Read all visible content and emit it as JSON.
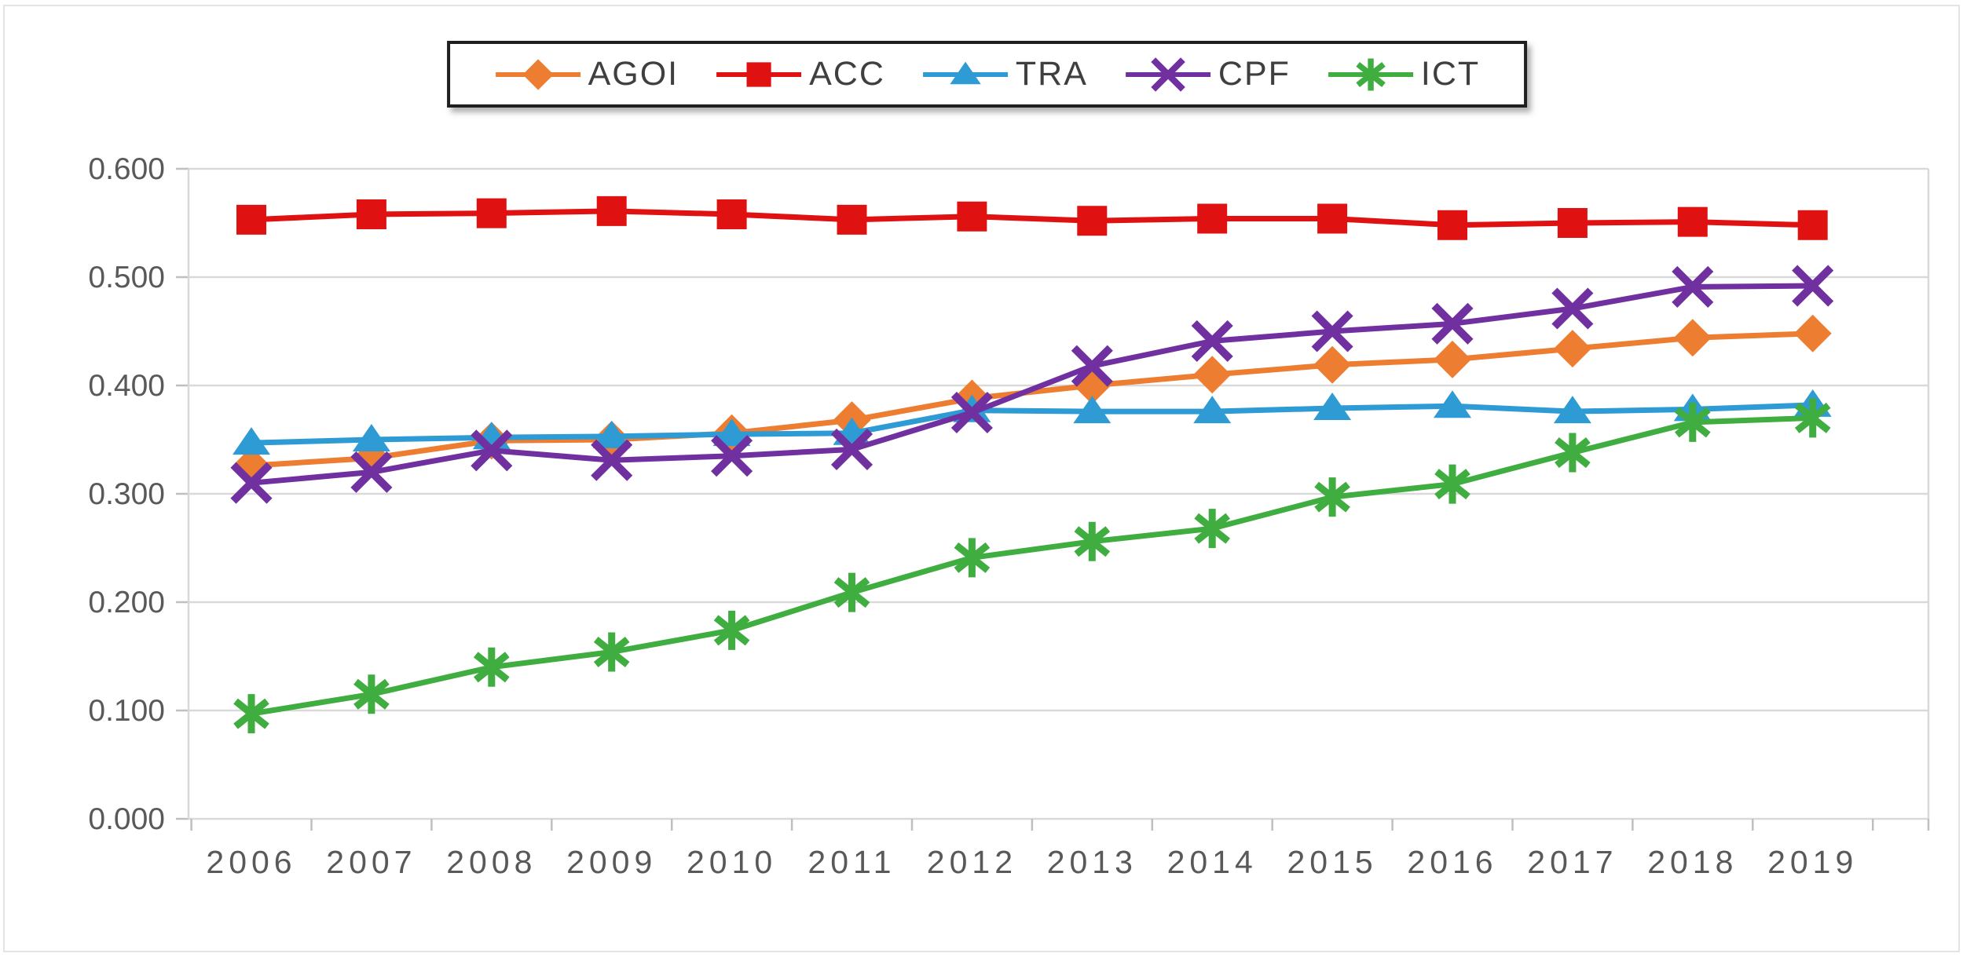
{
  "chart_data": {
    "type": "line",
    "title": "",
    "xlabel": "",
    "ylabel": "",
    "categories": [
      "2006",
      "2007",
      "2008",
      "2009",
      "2010",
      "2011",
      "2012",
      "2013",
      "2014",
      "2015",
      "2016",
      "2017",
      "2018",
      "2019"
    ],
    "series": [
      {
        "name": "AGOI",
        "marker": "diamond",
        "color": "#ED7D31",
        "values": [
          0.326,
          0.333,
          0.349,
          0.35,
          0.356,
          0.368,
          0.388,
          0.4,
          0.41,
          0.419,
          0.424,
          0.434,
          0.444,
          0.448
        ]
      },
      {
        "name": "ACC",
        "marker": "square",
        "color": "#E01111",
        "values": [
          0.553,
          0.558,
          0.559,
          0.561,
          0.558,
          0.553,
          0.556,
          0.552,
          0.554,
          0.554,
          0.548,
          0.55,
          0.551,
          0.548
        ]
      },
      {
        "name": "TRA",
        "marker": "triangle",
        "color": "#2E9BD5",
        "values": [
          0.347,
          0.35,
          0.352,
          0.353,
          0.355,
          0.356,
          0.377,
          0.376,
          0.376,
          0.379,
          0.381,
          0.376,
          0.378,
          0.382
        ]
      },
      {
        "name": "CPF",
        "marker": "x",
        "color": "#7030A0",
        "values": [
          0.31,
          0.32,
          0.34,
          0.331,
          0.335,
          0.341,
          0.375,
          0.418,
          0.441,
          0.45,
          0.457,
          0.471,
          0.491,
          0.492
        ]
      },
      {
        "name": "ICT",
        "marker": "asterisk",
        "color": "#3FAD3F",
        "values": [
          0.097,
          0.115,
          0.14,
          0.154,
          0.174,
          0.209,
          0.241,
          0.256,
          0.268,
          0.297,
          0.309,
          0.338,
          0.366,
          0.37
        ]
      }
    ],
    "ylim": [
      0,
      0.6
    ],
    "y_ticks": [
      "0.600",
      "0.500",
      "0.400",
      "0.300",
      "0.200",
      "0.100",
      "0.000"
    ],
    "grid": true,
    "legend_position": "top"
  },
  "colors": {
    "gridline": "#d9d9d9",
    "axis_tick": "#bfbfbf",
    "axis_text": "#595959",
    "legend_text": "#3f3f3f",
    "legend_border": "#1f1f1f",
    "frame_border": "#e4e4e4",
    "background": "#ffffff"
  }
}
